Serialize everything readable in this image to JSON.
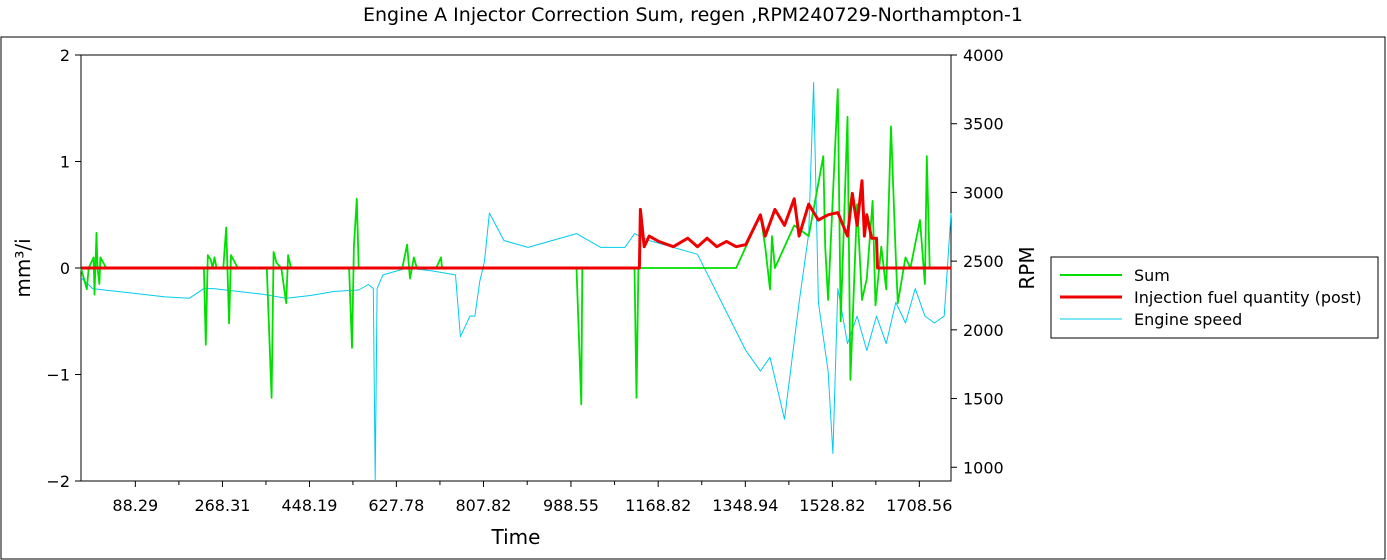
{
  "chart_data": {
    "type": "line",
    "title": "Engine A  Injector Correction Sum, regen ,RPM240729-Northampton-1",
    "xlabel": "Time",
    "ylabel": "mm³/i",
    "y2label": "RPM",
    "xlim": [
      -24,
      1774
    ],
    "ylim": [
      -2,
      2
    ],
    "y2lim": [
      900,
      4000
    ],
    "x_ticks": [
      "88.29",
      "268.31",
      "448.19",
      "627.78",
      "807.82",
      "988.55",
      "1168.82",
      "1348.94",
      "1528.82",
      "1708.56"
    ],
    "x_tick_values": [
      88.29,
      268.31,
      448.19,
      627.78,
      807.82,
      988.55,
      1168.82,
      1348.94,
      1528.82,
      1708.56
    ],
    "y_ticks": [
      "2",
      "1",
      "0",
      "−1",
      "−2"
    ],
    "y_tick_values": [
      2,
      1,
      0,
      -1,
      -2
    ],
    "y2_ticks": [
      "4000",
      "3500",
      "3000",
      "2500",
      "2000",
      "1500",
      "1000"
    ],
    "y2_tick_values": [
      4000,
      3500,
      3000,
      2500,
      2000,
      1500,
      1000
    ],
    "grid": false,
    "legend_position": "right",
    "series": [
      {
        "name": "Sum",
        "color": "#00e000",
        "axis": "left",
        "x": [
          -24,
          -12,
          -8,
          2,
          4,
          8,
          10,
          14,
          16,
          28,
          30,
          150,
          230,
          234,
          238,
          244,
          248,
          252,
          256,
          270,
          276,
          282,
          286,
          300,
          360,
          370,
          374,
          380,
          390,
          400,
          404,
          410,
          510,
          530,
          536,
          540,
          546,
          550,
          600,
          640,
          650,
          656,
          660,
          664,
          670,
          710,
          720,
          722,
          740,
          1000,
          1010,
          1012,
          1100,
          1120,
          1124,
          1128,
          1330,
          1380,
          1390,
          1400,
          1404,
          1410,
          1450,
          1480,
          1510,
          1514,
          1520,
          1540,
          1546,
          1560,
          1566,
          1580,
          1590,
          1600,
          1612,
          1618,
          1630,
          1640,
          1650,
          1660,
          1664,
          1680,
          1690,
          1710,
          1720,
          1724,
          1730,
          1774
        ],
        "values": [
          0,
          -0.2,
          0,
          0.1,
          -0.25,
          0.33,
          0,
          -0.15,
          0.1,
          0,
          0,
          0,
          0,
          -0.72,
          0.12,
          0.08,
          0,
          0.1,
          0,
          0,
          0.38,
          -0.52,
          0.12,
          0,
          0,
          -1.22,
          0.15,
          0.05,
          0,
          -0.33,
          0.12,
          0,
          0,
          0,
          -0.75,
          0.2,
          0.65,
          0,
          0,
          0,
          0.22,
          -0.1,
          0,
          0.1,
          0,
          0,
          0.1,
          0,
          0,
          0,
          -1.28,
          0,
          0,
          0,
          -1.22,
          0,
          0,
          0.5,
          0.2,
          -0.2,
          0.3,
          0,
          0.4,
          0.3,
          1.05,
          0.2,
          -0.3,
          1.68,
          -0.5,
          1.42,
          -1.05,
          0.6,
          -0.3,
          -0.1,
          0.63,
          -0.35,
          0.2,
          -0.2,
          1.33,
          0.1,
          -0.33,
          0.1,
          0,
          0.45,
          -0.15,
          1.05,
          0,
          0
        ]
      },
      {
        "name": "Injection fuel quantity (post)",
        "color": "#ee0000",
        "axis": "left",
        "x": [
          -24,
          1130,
          1132,
          1140,
          1150,
          1170,
          1200,
          1230,
          1250,
          1270,
          1290,
          1310,
          1330,
          1350,
          1380,
          1390,
          1410,
          1430,
          1450,
          1460,
          1480,
          1500,
          1520,
          1540,
          1560,
          1570,
          1580,
          1590,
          1595,
          1600,
          1610,
          1620,
          1622,
          1774
        ],
        "values": [
          0,
          0,
          0.55,
          0.2,
          0.3,
          0.25,
          0.2,
          0.28,
          0.2,
          0.28,
          0.2,
          0.25,
          0.2,
          0.22,
          0.5,
          0.3,
          0.55,
          0.4,
          0.65,
          0.3,
          0.6,
          0.45,
          0.5,
          0.52,
          0.3,
          0.7,
          0.4,
          0.82,
          0.3,
          0.5,
          0.28,
          0.28,
          0,
          0
        ]
      },
      {
        "name": "Engine speed",
        "color": "#00ccee",
        "axis": "right",
        "x": [
          -24,
          0,
          50,
          100,
          150,
          200,
          230,
          250,
          300,
          350,
          400,
          450,
          500,
          550,
          570,
          580,
          584,
          588,
          600,
          650,
          700,
          750,
          760,
          780,
          790,
          800,
          810,
          820,
          850,
          900,
          950,
          1000,
          1050,
          1100,
          1120,
          1150,
          1200,
          1250,
          1300,
          1350,
          1380,
          1400,
          1430,
          1460,
          1480,
          1490,
          1500,
          1520,
          1530,
          1540,
          1560,
          1580,
          1600,
          1620,
          1640,
          1660,
          1680,
          1700,
          1720,
          1740,
          1760,
          1774
        ],
        "values": [
          2380,
          2300,
          2280,
          2260,
          2240,
          2230,
          2300,
          2300,
          2280,
          2260,
          2230,
          2250,
          2280,
          2290,
          2330,
          2300,
          910,
          2300,
          2400,
          2450,
          2430,
          2400,
          1950,
          2100,
          2100,
          2350,
          2500,
          2850,
          2650,
          2600,
          2650,
          2700,
          2600,
          2600,
          2700,
          2650,
          2600,
          2550,
          2200,
          1850,
          1700,
          1800,
          1350,
          2200,
          2700,
          3800,
          2200,
          1700,
          1100,
          2300,
          1900,
          2100,
          1850,
          2100,
          1900,
          2200,
          2050,
          2300,
          2100,
          2050,
          2100,
          2850
        ]
      }
    ]
  }
}
